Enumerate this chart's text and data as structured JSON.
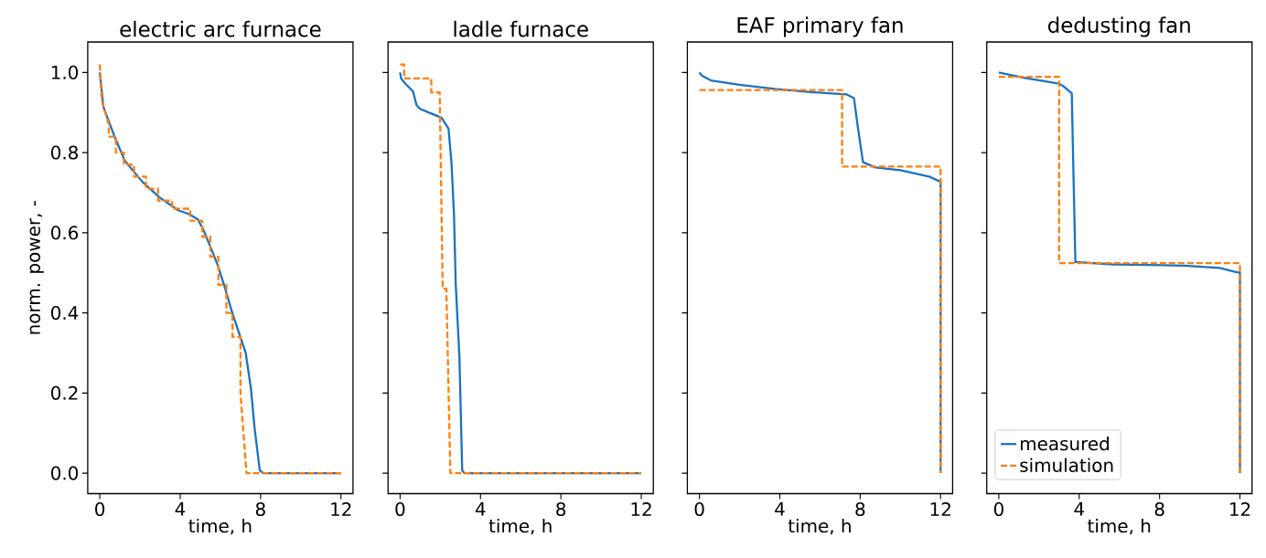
{
  "chart_data": [
    {
      "type": "line",
      "title": "electric arc furnace",
      "xlabel": "time, h",
      "ylabel": "norm. power, -",
      "xlim": [
        -0.6,
        12.6
      ],
      "ylim": [
        -0.051,
        1.076
      ],
      "xticks": [
        0,
        4,
        8,
        12
      ],
      "yticks": [
        {
          "value": 0,
          "label": "0.0"
        },
        0.2,
        0.4,
        0.6,
        0.8,
        {
          "value": 1,
          "label": "1.0"
        }
      ],
      "grid": false,
      "legend": false,
      "series": [
        {
          "color": "#1a72c0",
          "line_style": "solid",
          "x": [
            0,
            0.18,
            0.71,
            1.24,
            2.12,
            3.0,
            3.9,
            4.42,
            4.87,
            5.13,
            5.49,
            5.84,
            6.19,
            6.55,
            6.9,
            7.26,
            7.52,
            7.7,
            7.96,
            8.14,
            12
          ],
          "values": [
            1.0,
            0.914,
            0.843,
            0.78,
            0.727,
            0.687,
            0.656,
            0.647,
            0.634,
            0.61,
            0.567,
            0.523,
            0.469,
            0.407,
            0.354,
            0.3,
            0.212,
            0.114,
            0.007,
            0,
            0
          ]
        },
        {
          "color": "#ff7f0e",
          "line_style": "dashed",
          "x": [
            0,
            0.1,
            0.45,
            0.45,
            0.8,
            0.8,
            1.2,
            1.2,
            1.7,
            1.7,
            2.3,
            2.3,
            2.9,
            2.9,
            3.6,
            3.6,
            4.5,
            4.5,
            5.1,
            5.1,
            5.5,
            5.5,
            5.9,
            5.9,
            6.3,
            6.3,
            6.6,
            6.6,
            7.0,
            7.0,
            7.3,
            12
          ],
          "values": [
            1.02,
            0.93,
            0.87,
            0.84,
            0.84,
            0.8,
            0.8,
            0.77,
            0.77,
            0.74,
            0.74,
            0.71,
            0.71,
            0.68,
            0.68,
            0.66,
            0.66,
            0.63,
            0.63,
            0.59,
            0.59,
            0.54,
            0.54,
            0.47,
            0.47,
            0.4,
            0.4,
            0.34,
            0.34,
            0.2,
            0,
            0
          ]
        }
      ]
    },
    {
      "type": "line",
      "title": "ladle furnace",
      "xlabel": "time, h",
      "xlim": [
        -0.6,
        12.6
      ],
      "ylim": [
        -0.051,
        1.076
      ],
      "xticks": [
        0,
        4,
        8,
        12
      ],
      "yticks": [
        0,
        0.2,
        0.4,
        0.6,
        0.8,
        1
      ],
      "tick_labels": "x",
      "grid": false,
      "legend": false,
      "series": [
        {
          "color": "#1a72c0",
          "line_style": "solid",
          "x": [
            0,
            0.05,
            0.3,
            0.64,
            0.82,
            1.0,
            1.53,
            2.06,
            2.41,
            2.56,
            2.68,
            2.77,
            2.95,
            3.09,
            3.2,
            12
          ],
          "values": [
            1.0,
            0.985,
            0.97,
            0.953,
            0.918,
            0.909,
            0.898,
            0.887,
            0.86,
            0.772,
            0.647,
            0.469,
            0.292,
            0.007,
            0,
            0
          ]
        },
        {
          "color": "#ff7f0e",
          "line_style": "dashed",
          "x": [
            0,
            0.2,
            0.2,
            1.55,
            1.55,
            1.97,
            2.12,
            2.3,
            2.5,
            12
          ],
          "values": [
            1.02,
            1.02,
            0.985,
            0.985,
            0.95,
            0.95,
            0.46,
            0.46,
            0,
            0
          ]
        }
      ]
    },
    {
      "type": "line",
      "title": "EAF primary fan",
      "xlabel": "time, h",
      "xlim": [
        -0.6,
        12.6
      ],
      "ylim": [
        -0.051,
        1.076
      ],
      "xticks": [
        0,
        4,
        8,
        12
      ],
      "yticks": [
        0,
        0.2,
        0.4,
        0.6,
        0.8,
        1
      ],
      "tick_labels": "x",
      "grid": false,
      "legend": false,
      "series": [
        {
          "color": "#1a72c0",
          "line_style": "solid",
          "x": [
            0,
            0.12,
            0.57,
            2.0,
            3.77,
            5.55,
            7.34,
            7.69,
            7.87,
            8.14,
            8.76,
            10.0,
            11.43,
            12,
            12
          ],
          "values": [
            1.0,
            0.992,
            0.98,
            0.969,
            0.959,
            0.951,
            0.945,
            0.936,
            0.869,
            0.776,
            0.763,
            0.756,
            0.74,
            0.727,
            0
          ]
        },
        {
          "color": "#ff7f0e",
          "line_style": "dashed",
          "x": [
            0,
            7.1,
            7.1,
            12,
            12
          ],
          "values": [
            0.956,
            0.956,
            0.765,
            0.765,
            0
          ]
        }
      ]
    },
    {
      "type": "line",
      "title": "dedusting fan",
      "xlabel": "time, h",
      "xlim": [
        -0.6,
        12.6
      ],
      "ylim": [
        -0.051,
        1.076
      ],
      "xticks": [
        0,
        4,
        8,
        12
      ],
      "yticks": [
        0,
        0.2,
        0.4,
        0.6,
        0.8,
        1
      ],
      "tick_labels": "x",
      "grid": false,
      "legend": "bottom left",
      "series": [
        {
          "name": "measured",
          "color": "#1a72c0",
          "line_style": "solid",
          "x": [
            0,
            1.24,
            3.01,
            3.28,
            3.63,
            3.72,
            3.81,
            5.67,
            9.22,
            10.99,
            11.7,
            12,
            12
          ],
          "values": [
            1.0,
            0.987,
            0.972,
            0.963,
            0.948,
            0.736,
            0.527,
            0.521,
            0.518,
            0.512,
            0.503,
            0.5,
            0
          ]
        },
        {
          "name": "simulation",
          "color": "#ff7f0e",
          "line_style": "dashed",
          "x": [
            0,
            3.0,
            3.0,
            12,
            12
          ],
          "values": [
            0.989,
            0.989,
            0.524,
            0.524,
            0
          ]
        }
      ]
    }
  ]
}
